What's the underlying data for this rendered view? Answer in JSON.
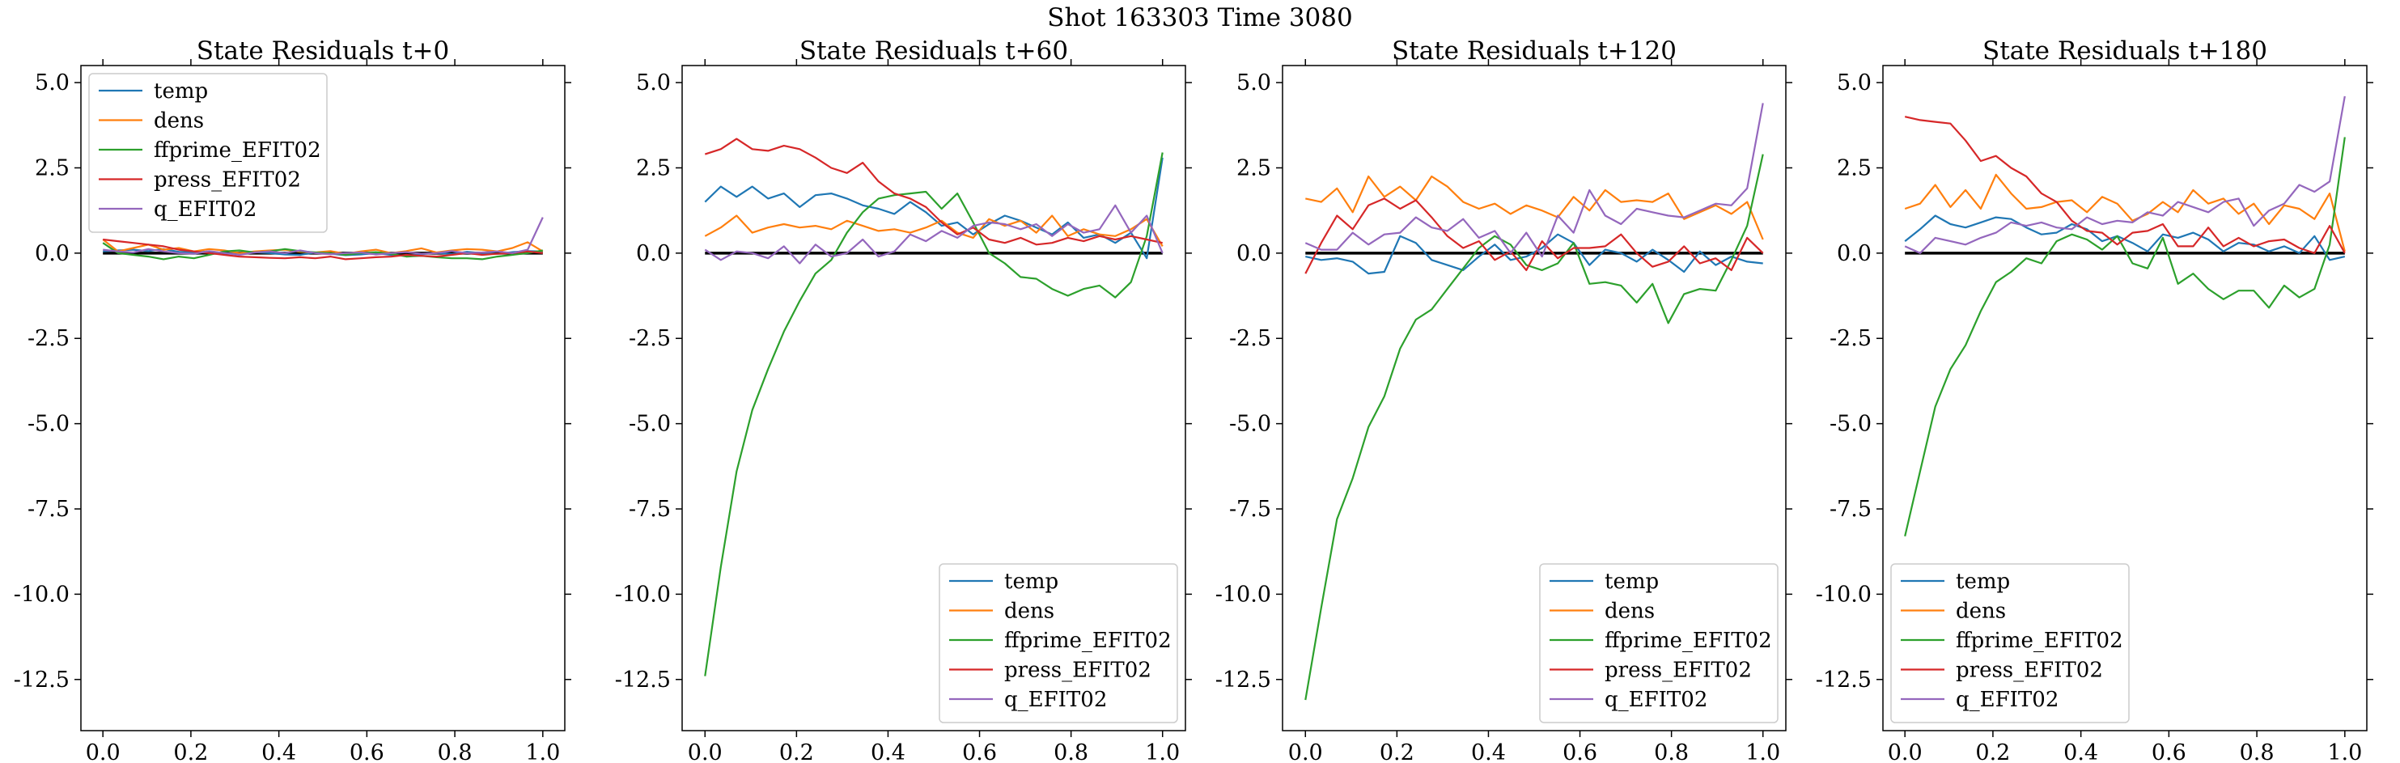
{
  "figure": {
    "suptitle": "Shot 163303   Time 3080",
    "colors": {
      "temp": "#1f77b4",
      "dens": "#ff7f0e",
      "ffprime_EFIT02": "#2ca02c",
      "press_EFIT02": "#d62728",
      "q_EFIT02": "#9467bd",
      "zero_line": "#000000"
    }
  },
  "chart_data": [
    {
      "type": "line",
      "title": "State Residuals t+0",
      "xlim": [
        -0.05,
        1.05
      ],
      "ylim": [
        -14.0,
        5.5
      ],
      "xticks": [
        "0.0",
        "0.2",
        "0.4",
        "0.6",
        "0.8",
        "1.0"
      ],
      "yticks": [
        "5.0",
        "2.5",
        "0.0",
        "-2.5",
        "-5.0",
        "-7.5",
        "-10.0",
        "-12.5"
      ],
      "legend_position": "upper left",
      "x": [
        0.0,
        0.0345,
        0.069,
        0.1034,
        0.1379,
        0.1724,
        0.2069,
        0.2414,
        0.2759,
        0.3103,
        0.3448,
        0.3793,
        0.4138,
        0.4483,
        0.4828,
        0.5172,
        0.5517,
        0.5862,
        0.6207,
        0.6552,
        0.6897,
        0.7241,
        0.7586,
        0.7931,
        0.8276,
        0.8621,
        0.8966,
        0.931,
        0.9655,
        1.0
      ],
      "series": [
        {
          "name": "temp",
          "values": [
            0.05,
            0.08,
            0.1,
            0.06,
            0.12,
            0.04,
            0.02,
            0.05,
            0.0,
            -0.02,
            0.03,
            0.0,
            -0.04,
            -0.05,
            0.02,
            -0.02,
            -0.06,
            -0.04,
            0.0,
            -0.05,
            -0.08,
            -0.03,
            0.01,
            -0.03,
            0.04,
            0.0,
            -0.02,
            0.03,
            0.06,
            0.05
          ]
        },
        {
          "name": "dens",
          "values": [
            0.4,
            0.05,
            0.15,
            0.25,
            0.1,
            0.15,
            0.05,
            0.12,
            0.08,
            0.0,
            0.05,
            0.08,
            0.1,
            0.04,
            0.02,
            0.06,
            -0.02,
            0.05,
            0.1,
            0.0,
            0.06,
            0.14,
            0.02,
            0.08,
            0.12,
            0.1,
            0.05,
            0.15,
            0.32,
            0.05
          ]
        },
        {
          "name": "ffprime_EFIT02",
          "values": [
            0.3,
            0.0,
            -0.05,
            -0.1,
            -0.18,
            -0.1,
            -0.15,
            -0.05,
            0.05,
            0.08,
            0.02,
            0.05,
            0.12,
            0.06,
            0.02,
            0.0,
            -0.05,
            0.0,
            0.03,
            -0.02,
            -0.1,
            -0.08,
            -0.12,
            -0.15,
            -0.15,
            -0.18,
            -0.1,
            -0.05,
            0.0,
            0.08
          ]
        },
        {
          "name": "press_EFIT02",
          "values": [
            0.4,
            0.35,
            0.3,
            0.25,
            0.2,
            0.1,
            0.05,
            0.0,
            -0.05,
            -0.1,
            -0.12,
            -0.14,
            -0.15,
            -0.12,
            -0.15,
            -0.1,
            -0.18,
            -0.15,
            -0.12,
            -0.1,
            -0.05,
            -0.08,
            -0.1,
            -0.05,
            0.0,
            -0.05,
            -0.02,
            0.0,
            0.05,
            0.0
          ]
        },
        {
          "name": "q_EFIT02",
          "values": [
            0.1,
            0.05,
            0.02,
            0.12,
            0.05,
            0.0,
            -0.02,
            0.06,
            0.0,
            -0.05,
            0.02,
            0.05,
            0.0,
            0.08,
            0.0,
            -0.03,
            0.0,
            0.02,
            -0.04,
            0.0,
            0.03,
            -0.02,
            0.0,
            0.06,
            0.0,
            0.02,
            0.05,
            0.0,
            0.1,
            1.05
          ]
        }
      ]
    },
    {
      "type": "line",
      "title": "State Residuals t+60",
      "xlim": [
        -0.05,
        1.05
      ],
      "ylim": [
        -14.0,
        5.5
      ],
      "xticks": [
        "0.0",
        "0.2",
        "0.4",
        "0.6",
        "0.8",
        "1.0"
      ],
      "yticks": [
        "5.0",
        "2.5",
        "0.0",
        "-2.5",
        "-5.0",
        "-7.5",
        "-10.0",
        "-12.5"
      ],
      "legend_position": "lower right",
      "x": [
        0.0,
        0.0345,
        0.069,
        0.1034,
        0.1379,
        0.1724,
        0.2069,
        0.2414,
        0.2759,
        0.3103,
        0.3448,
        0.3793,
        0.4138,
        0.4483,
        0.4828,
        0.5172,
        0.5517,
        0.5862,
        0.6207,
        0.6552,
        0.6897,
        0.7241,
        0.7586,
        0.7931,
        0.8276,
        0.8621,
        0.8966,
        0.931,
        0.9655,
        1.0
      ],
      "series": [
        {
          "name": "temp",
          "values": [
            1.5,
            1.95,
            1.65,
            1.95,
            1.6,
            1.75,
            1.35,
            1.7,
            1.75,
            1.6,
            1.4,
            1.3,
            1.15,
            1.5,
            1.2,
            0.8,
            0.9,
            0.55,
            0.85,
            1.1,
            0.95,
            0.75,
            0.55,
            0.9,
            0.45,
            0.55,
            0.3,
            0.6,
            -0.15,
            2.8
          ]
        },
        {
          "name": "dens",
          "values": [
            0.5,
            0.75,
            1.1,
            0.6,
            0.75,
            0.85,
            0.75,
            0.8,
            0.7,
            0.95,
            0.8,
            0.65,
            0.7,
            0.6,
            0.75,
            0.95,
            0.6,
            0.45,
            1.0,
            0.8,
            0.95,
            0.6,
            1.1,
            0.5,
            0.7,
            0.55,
            0.5,
            0.7,
            1.0,
            0.2
          ]
        },
        {
          "name": "ffprime_EFIT02",
          "values": [
            -12.4,
            -9.2,
            -6.4,
            -4.6,
            -3.4,
            -2.3,
            -1.4,
            -0.6,
            -0.2,
            0.6,
            1.2,
            1.6,
            1.7,
            1.75,
            1.8,
            1.3,
            1.75,
            0.9,
            0.0,
            -0.3,
            -0.7,
            -0.75,
            -1.05,
            -1.25,
            -1.05,
            -0.95,
            -1.3,
            -0.85,
            0.5,
            2.95
          ]
        },
        {
          "name": "press_EFIT02",
          "values": [
            2.9,
            3.05,
            3.35,
            3.05,
            3.0,
            3.15,
            3.05,
            2.8,
            2.5,
            2.35,
            2.65,
            2.1,
            1.75,
            1.6,
            1.35,
            0.9,
            0.55,
            0.75,
            0.4,
            0.3,
            0.45,
            0.25,
            0.3,
            0.45,
            0.35,
            0.5,
            0.4,
            0.5,
            0.4,
            0.3
          ]
        },
        {
          "name": "q_EFIT02",
          "values": [
            0.1,
            -0.2,
            0.05,
            0.0,
            -0.15,
            0.2,
            -0.3,
            0.25,
            -0.1,
            0.0,
            0.4,
            -0.1,
            0.05,
            0.55,
            0.35,
            0.65,
            0.45,
            0.8,
            0.9,
            0.85,
            0.7,
            0.85,
            0.5,
            0.85,
            0.6,
            0.7,
            1.4,
            0.6,
            1.1,
            0.0
          ]
        }
      ]
    },
    {
      "type": "line",
      "title": "State Residuals t+120",
      "xlim": [
        -0.05,
        1.05
      ],
      "ylim": [
        -14.0,
        5.5
      ],
      "xticks": [
        "0.0",
        "0.2",
        "0.4",
        "0.6",
        "0.8",
        "1.0"
      ],
      "yticks": [
        "5.0",
        "2.5",
        "0.0",
        "-2.5",
        "-5.0",
        "-7.5",
        "-10.0",
        "-12.5"
      ],
      "legend_position": "lower right",
      "x": [
        0.0,
        0.0345,
        0.069,
        0.1034,
        0.1379,
        0.1724,
        0.2069,
        0.2414,
        0.2759,
        0.3103,
        0.3448,
        0.3793,
        0.4138,
        0.4483,
        0.4828,
        0.5172,
        0.5517,
        0.5862,
        0.6207,
        0.6552,
        0.6897,
        0.7241,
        0.7586,
        0.7931,
        0.8276,
        0.8621,
        0.8966,
        0.931,
        0.9655,
        1.0
      ],
      "series": [
        {
          "name": "temp",
          "values": [
            -0.1,
            -0.2,
            -0.15,
            -0.25,
            -0.6,
            -0.55,
            0.5,
            0.3,
            -0.2,
            -0.35,
            -0.5,
            -0.1,
            0.25,
            -0.2,
            -0.1,
            0.15,
            0.55,
            0.3,
            -0.35,
            0.1,
            0.0,
            -0.25,
            0.1,
            -0.2,
            -0.55,
            0.05,
            -0.35,
            -0.1,
            -0.25,
            -0.3
          ]
        },
        {
          "name": "dens",
          "values": [
            1.6,
            1.5,
            1.9,
            1.2,
            2.25,
            1.65,
            1.95,
            1.55,
            2.25,
            1.95,
            1.5,
            1.3,
            1.45,
            1.15,
            1.4,
            1.25,
            1.05,
            1.65,
            1.25,
            1.85,
            1.5,
            1.55,
            1.5,
            1.75,
            1.0,
            1.2,
            1.4,
            1.15,
            1.5,
            0.4
          ]
        },
        {
          "name": "ffprime_EFIT02",
          "values": [
            -13.1,
            -10.4,
            -7.8,
            -6.6,
            -5.1,
            -4.2,
            -2.8,
            -1.95,
            -1.65,
            -1.05,
            -0.45,
            0.15,
            0.5,
            0.25,
            -0.35,
            -0.5,
            -0.3,
            0.3,
            -0.9,
            -0.85,
            -0.95,
            -1.45,
            -0.9,
            -2.05,
            -1.2,
            -1.05,
            -1.1,
            -0.2,
            0.8,
            2.9
          ]
        },
        {
          "name": "press_EFIT02",
          "values": [
            -0.6,
            0.3,
            1.1,
            0.7,
            1.4,
            1.6,
            1.3,
            1.55,
            1.05,
            0.5,
            0.15,
            0.35,
            -0.2,
            0.05,
            -0.5,
            0.35,
            -0.15,
            0.15,
            0.15,
            0.2,
            0.55,
            0.0,
            -0.4,
            -0.25,
            0.2,
            -0.3,
            -0.15,
            -0.5,
            0.45,
            0.0
          ]
        },
        {
          "name": "q_EFIT02",
          "values": [
            0.3,
            0.1,
            0.1,
            0.6,
            0.25,
            0.55,
            0.6,
            1.05,
            0.75,
            0.65,
            1.0,
            0.45,
            0.65,
            0.0,
            0.6,
            -0.1,
            1.1,
            0.6,
            1.85,
            1.1,
            0.85,
            1.3,
            1.2,
            1.1,
            1.05,
            1.25,
            1.45,
            1.4,
            1.9,
            4.4
          ]
        }
      ]
    },
    {
      "type": "line",
      "title": "State Residuals t+180",
      "xlim": [
        -0.05,
        1.05
      ],
      "ylim": [
        -14.0,
        5.5
      ],
      "xticks": [
        "0.0",
        "0.2",
        "0.4",
        "0.6",
        "0.8",
        "1.0"
      ],
      "yticks": [
        "5.0",
        "2.5",
        "0.0",
        "-2.5",
        "-5.0",
        "-7.5",
        "-10.0",
        "-12.5"
      ],
      "legend_position": "lower left",
      "x": [
        0.0,
        0.0345,
        0.069,
        0.1034,
        0.1379,
        0.1724,
        0.2069,
        0.2414,
        0.2759,
        0.3103,
        0.3448,
        0.3793,
        0.4138,
        0.4483,
        0.4828,
        0.5172,
        0.5517,
        0.5862,
        0.6207,
        0.6552,
        0.6897,
        0.7241,
        0.7586,
        0.7931,
        0.8276,
        0.8621,
        0.8966,
        0.931,
        0.9655,
        1.0
      ],
      "series": [
        {
          "name": "temp",
          "values": [
            0.35,
            0.7,
            1.1,
            0.85,
            0.75,
            0.9,
            1.05,
            1.0,
            0.75,
            0.55,
            0.6,
            0.85,
            0.7,
            0.35,
            0.5,
            0.3,
            0.05,
            0.55,
            0.45,
            0.6,
            0.4,
            0.05,
            0.3,
            0.25,
            0.05,
            0.2,
            0.0,
            0.5,
            -0.2,
            -0.1
          ]
        },
        {
          "name": "dens",
          "values": [
            1.3,
            1.45,
            2.0,
            1.35,
            1.85,
            1.3,
            2.3,
            1.75,
            1.3,
            1.35,
            1.5,
            1.55,
            1.2,
            1.65,
            1.45,
            0.95,
            1.15,
            1.5,
            1.2,
            1.85,
            1.45,
            1.6,
            1.15,
            1.45,
            0.85,
            1.4,
            1.3,
            1.0,
            1.75,
            0.05
          ]
        },
        {
          "name": "ffprime_EFIT02",
          "values": [
            -8.3,
            -6.4,
            -4.5,
            -3.4,
            -2.7,
            -1.7,
            -0.85,
            -0.55,
            -0.15,
            -0.3,
            0.35,
            0.55,
            0.4,
            0.1,
            0.5,
            -0.3,
            -0.45,
            0.45,
            -0.9,
            -0.6,
            -1.05,
            -1.35,
            -1.1,
            -1.1,
            -1.6,
            -0.95,
            -1.3,
            -1.05,
            0.25,
            3.4
          ]
        },
        {
          "name": "press_EFIT02",
          "values": [
            4.0,
            3.9,
            3.85,
            3.8,
            3.3,
            2.7,
            2.85,
            2.5,
            2.25,
            1.75,
            1.5,
            0.95,
            0.65,
            0.6,
            0.25,
            0.6,
            0.65,
            0.85,
            0.2,
            0.2,
            0.75,
            0.2,
            0.45,
            0.2,
            0.35,
            0.4,
            0.15,
            0.0,
            0.8,
            0.0
          ]
        },
        {
          "name": "q_EFIT02",
          "values": [
            0.2,
            0.0,
            0.45,
            0.35,
            0.25,
            0.45,
            0.6,
            0.9,
            0.8,
            0.9,
            0.75,
            0.7,
            1.05,
            0.85,
            0.95,
            0.9,
            1.2,
            1.1,
            1.5,
            1.35,
            1.2,
            1.5,
            1.6,
            0.8,
            1.25,
            1.45,
            2.0,
            1.8,
            2.1,
            4.6
          ]
        }
      ]
    }
  ]
}
